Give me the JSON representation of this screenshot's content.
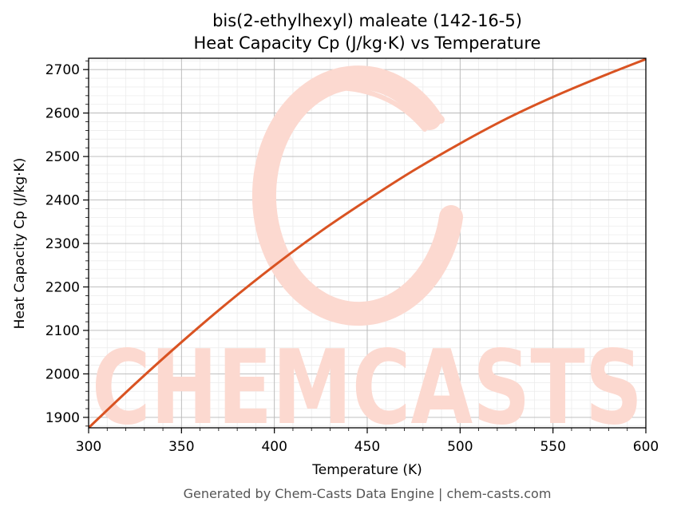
{
  "chart_data": {
    "type": "line",
    "title_line1": "bis(2-ethylhexyl) maleate (142-16-5)",
    "title_line2": "Heat Capacity Cp (J/kg·K) vs Temperature",
    "xlabel": "Temperature (K)",
    "ylabel": "Heat Capacity Cp (J/kg·K)",
    "xlim": [
      300,
      600
    ],
    "ylim": [
      1876,
      2726
    ],
    "xticks": [
      300,
      350,
      400,
      450,
      500,
      550,
      600
    ],
    "yticks": [
      1900,
      2000,
      2100,
      2200,
      2300,
      2400,
      2500,
      2600,
      2700
    ],
    "grid": true,
    "series": [
      {
        "color": "#d95322",
        "x": [
          300,
          325,
          350,
          375,
          400,
          425,
          450,
          475,
          500,
          525,
          550,
          575,
          600
        ],
        "y": [
          1876,
          1977,
          2073,
          2164,
          2249,
          2328,
          2400,
          2468,
          2530,
          2587,
          2637,
          2682,
          2724
        ]
      }
    ]
  },
  "watermark": {
    "text": "CHEMCASTS",
    "color": "#fcd9d0"
  },
  "footer": "Generated by Chem-Casts Data Engine | chem-casts.com"
}
